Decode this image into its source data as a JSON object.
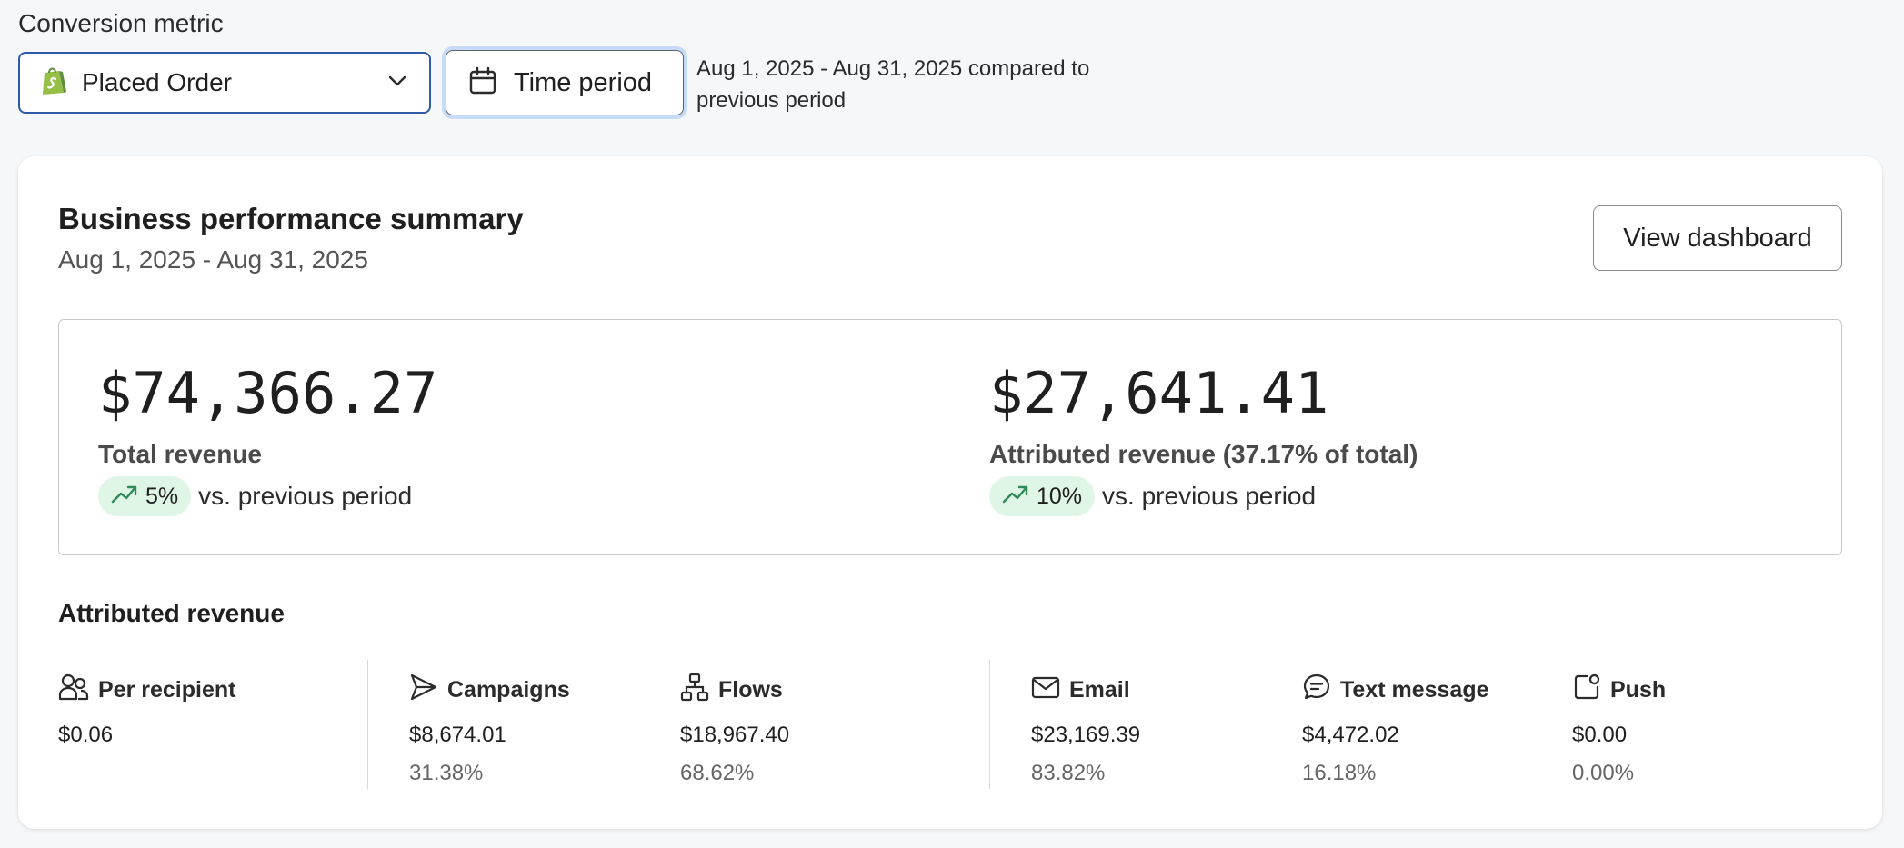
{
  "conversion_metric": {
    "label": "Conversion metric",
    "selected": "Placed Order"
  },
  "time_period": {
    "button_label": "Time period",
    "description": "Aug 1, 2025 - Aug 31, 2025 compared to previous period"
  },
  "card": {
    "title": "Business performance summary",
    "date_range": "Aug 1, 2025 - Aug 31, 2025",
    "view_dashboard_label": "View dashboard"
  },
  "summary": {
    "total": {
      "value": "$74,366.27",
      "label": "Total revenue",
      "change": "5%",
      "vs": "vs. previous period"
    },
    "attributed": {
      "value": "$27,641.41",
      "label": "Attributed revenue (37.17% of total)",
      "change": "10%",
      "vs": "vs. previous period"
    }
  },
  "attributed_revenue": {
    "title": "Attributed revenue",
    "per_recipient": {
      "label": "Per recipient",
      "value": "$0.06"
    },
    "campaigns": {
      "label": "Campaigns",
      "value": "$8,674.01",
      "percent": "31.38%"
    },
    "flows": {
      "label": "Flows",
      "value": "$18,967.40",
      "percent": "68.62%"
    },
    "email": {
      "label": "Email",
      "value": "$23,169.39",
      "percent": "83.82%"
    },
    "text_message": {
      "label": "Text message",
      "value": "$4,472.02",
      "percent": "16.18%"
    },
    "push": {
      "label": "Push",
      "value": "$0.00",
      "percent": "0.00%"
    }
  },
  "colors": {
    "select_border": "#2e5aa8",
    "badge_bg": "#dff5e5",
    "trend_green": "#2f8a57",
    "shopify_green": "#95bf47"
  }
}
